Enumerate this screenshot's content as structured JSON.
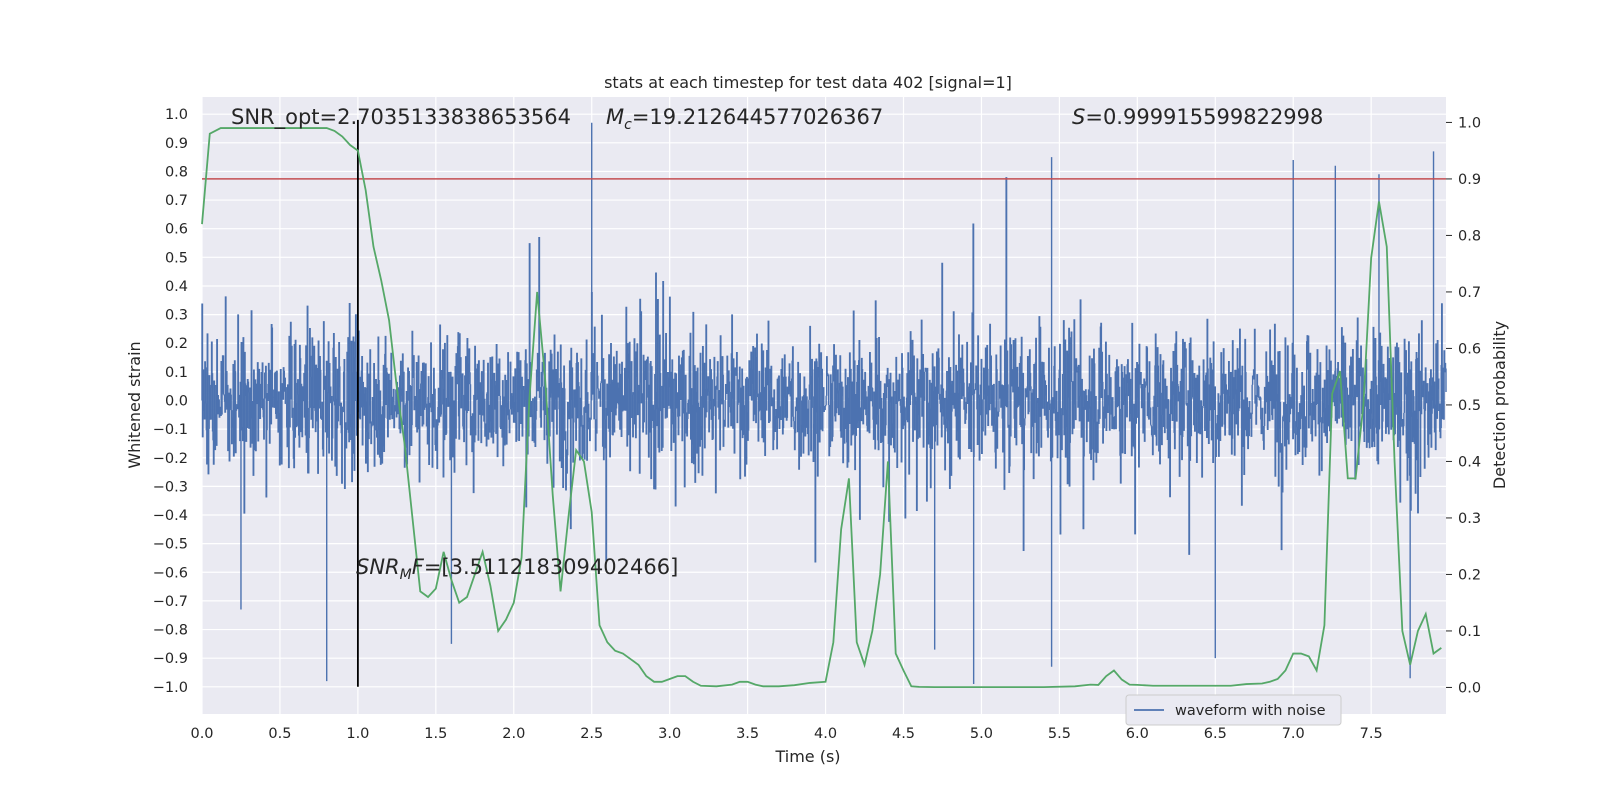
{
  "chart_data": {
    "type": "line",
    "title": "stats at each timestep for test data 402 [signal=1]",
    "xlabel": "Time (s)",
    "ylabel_left": "Whitened strain",
    "ylabel_right": "Detection probability",
    "xlim": [
      0.0,
      7.98
    ],
    "ylim_left": [
      -1.095,
      1.06
    ],
    "ylim_right": [
      -0.047,
      1.045
    ],
    "x_ticks": [
      "0.0",
      "0.5",
      "1.0",
      "1.5",
      "2.0",
      "2.5",
      "3.0",
      "3.5",
      "4.0",
      "4.5",
      "5.0",
      "5.5",
      "6.0",
      "6.5",
      "7.0",
      "7.5"
    ],
    "y_left_ticks": [
      "1.0",
      "0.9",
      "0.8",
      "0.7",
      "0.6",
      "0.5",
      "0.4",
      "0.3",
      "0.2",
      "0.1",
      "0.0",
      "-0.1",
      "-0.2",
      "-0.3",
      "-0.4",
      "-0.5",
      "-0.6",
      "-0.7",
      "-0.8",
      "-0.9",
      "-1.0"
    ],
    "y_right_ticks": [
      "1.0",
      "0.9",
      "0.8",
      "0.7",
      "0.6",
      "0.5",
      "0.4",
      "0.3",
      "0.2",
      "0.1",
      "0.0"
    ],
    "threshold": {
      "value": 0.9,
      "axis": "right",
      "color": "#c44e52"
    },
    "marker": {
      "x": 1.0,
      "y_range": [
        -1.0,
        0.98
      ],
      "color": "#000000"
    },
    "annotations": {
      "snr_opt": "SNR_opt=2.7035133838653564",
      "mc_symbol": "M",
      "mc_sub": "c",
      "mc_value": "=19.212644577026367",
      "s_symbol": "S",
      "s_value": "=0.999915599822998",
      "snrmf_symbol": "SNR",
      "snrmf_sub": "M",
      "snrmf_f": "F",
      "snrmf_value": "=[3.511218309402466]"
    },
    "legend": {
      "label": "waveform with noise",
      "position": "lower center-right"
    },
    "series": [
      {
        "name": "waveform with noise",
        "axis": "left",
        "color": "#4c72b0",
        "render": "dense noise trace",
        "spikes": [
          [
            2.5,
            0.97
          ],
          [
            5.45,
            0.85
          ],
          [
            7.0,
            0.84
          ],
          [
            7.9,
            0.87
          ],
          [
            7.27,
            0.82
          ],
          [
            7.55,
            0.79
          ],
          [
            0.8,
            -0.98
          ],
          [
            4.95,
            -0.99
          ],
          [
            4.7,
            -0.87
          ],
          [
            5.45,
            -0.93
          ],
          [
            6.5,
            -0.9
          ],
          [
            7.75,
            -0.97
          ],
          [
            0.25,
            -0.73
          ],
          [
            1.6,
            -0.85
          ]
        ]
      },
      {
        "name": "detection probability",
        "axis": "right",
        "color": "#55a868",
        "x": [
          0.0,
          0.05,
          0.12,
          0.2,
          0.3,
          0.4,
          0.5,
          0.6,
          0.7,
          0.8,
          0.85,
          0.9,
          0.95,
          1.0,
          1.05,
          1.1,
          1.15,
          1.2,
          1.25,
          1.3,
          1.35,
          1.4,
          1.45,
          1.5,
          1.55,
          1.6,
          1.65,
          1.7,
          1.75,
          1.8,
          1.85,
          1.9,
          1.95,
          2.0,
          2.05,
          2.1,
          2.15,
          2.2,
          2.25,
          2.3,
          2.35,
          2.4,
          2.45,
          2.5,
          2.55,
          2.6,
          2.65,
          2.7,
          2.75,
          2.8,
          2.85,
          2.9,
          2.95,
          3.0,
          3.05,
          3.1,
          3.15,
          3.2,
          3.3,
          3.4,
          3.45,
          3.5,
          3.55,
          3.6,
          3.7,
          3.8,
          3.9,
          4.0,
          4.05,
          4.1,
          4.15,
          4.2,
          4.25,
          4.3,
          4.35,
          4.4,
          4.45,
          4.5,
          4.55,
          4.6,
          4.7,
          4.8,
          4.9,
          5.0,
          5.2,
          5.4,
          5.6,
          5.7,
          5.75,
          5.8,
          5.85,
          5.9,
          5.95,
          6.0,
          6.1,
          6.2,
          6.3,
          6.4,
          6.5,
          6.6,
          6.7,
          6.8,
          6.85,
          6.9,
          6.95,
          7.0,
          7.05,
          7.1,
          7.15,
          7.2,
          7.25,
          7.3,
          7.35,
          7.4,
          7.45,
          7.5,
          7.55,
          7.6,
          7.65,
          7.7,
          7.75,
          7.8,
          7.85,
          7.9,
          7.95
        ],
        "y": [
          0.82,
          0.98,
          0.99,
          0.99,
          0.99,
          0.99,
          0.99,
          0.99,
          0.99,
          0.99,
          0.985,
          0.975,
          0.96,
          0.95,
          0.88,
          0.78,
          0.72,
          0.65,
          0.53,
          0.43,
          0.3,
          0.17,
          0.16,
          0.175,
          0.24,
          0.19,
          0.15,
          0.16,
          0.2,
          0.24,
          0.18,
          0.1,
          0.12,
          0.15,
          0.23,
          0.51,
          0.7,
          0.55,
          0.34,
          0.17,
          0.3,
          0.42,
          0.4,
          0.31,
          0.11,
          0.08,
          0.065,
          0.06,
          0.05,
          0.04,
          0.02,
          0.01,
          0.01,
          0.015,
          0.02,
          0.02,
          0.01,
          0.003,
          0.002,
          0.005,
          0.01,
          0.01,
          0.005,
          0.002,
          0.002,
          0.004,
          0.008,
          0.01,
          0.08,
          0.28,
          0.37,
          0.08,
          0.04,
          0.1,
          0.2,
          0.4,
          0.06,
          0.03,
          0.002,
          0.001,
          0.0005,
          0.0005,
          0.0005,
          0.0005,
          0.0005,
          0.0005,
          0.002,
          0.005,
          0.0045,
          0.02,
          0.03,
          0.014,
          0.005,
          0.0045,
          0.003,
          0.003,
          0.003,
          0.003,
          0.003,
          0.003,
          0.006,
          0.007,
          0.01,
          0.015,
          0.03,
          0.06,
          0.06,
          0.055,
          0.03,
          0.11,
          0.52,
          0.56,
          0.37,
          0.37,
          0.5,
          0.76,
          0.86,
          0.78,
          0.4,
          0.1,
          0.04,
          0.1,
          0.13,
          0.06,
          0.07
        ]
      }
    ]
  }
}
